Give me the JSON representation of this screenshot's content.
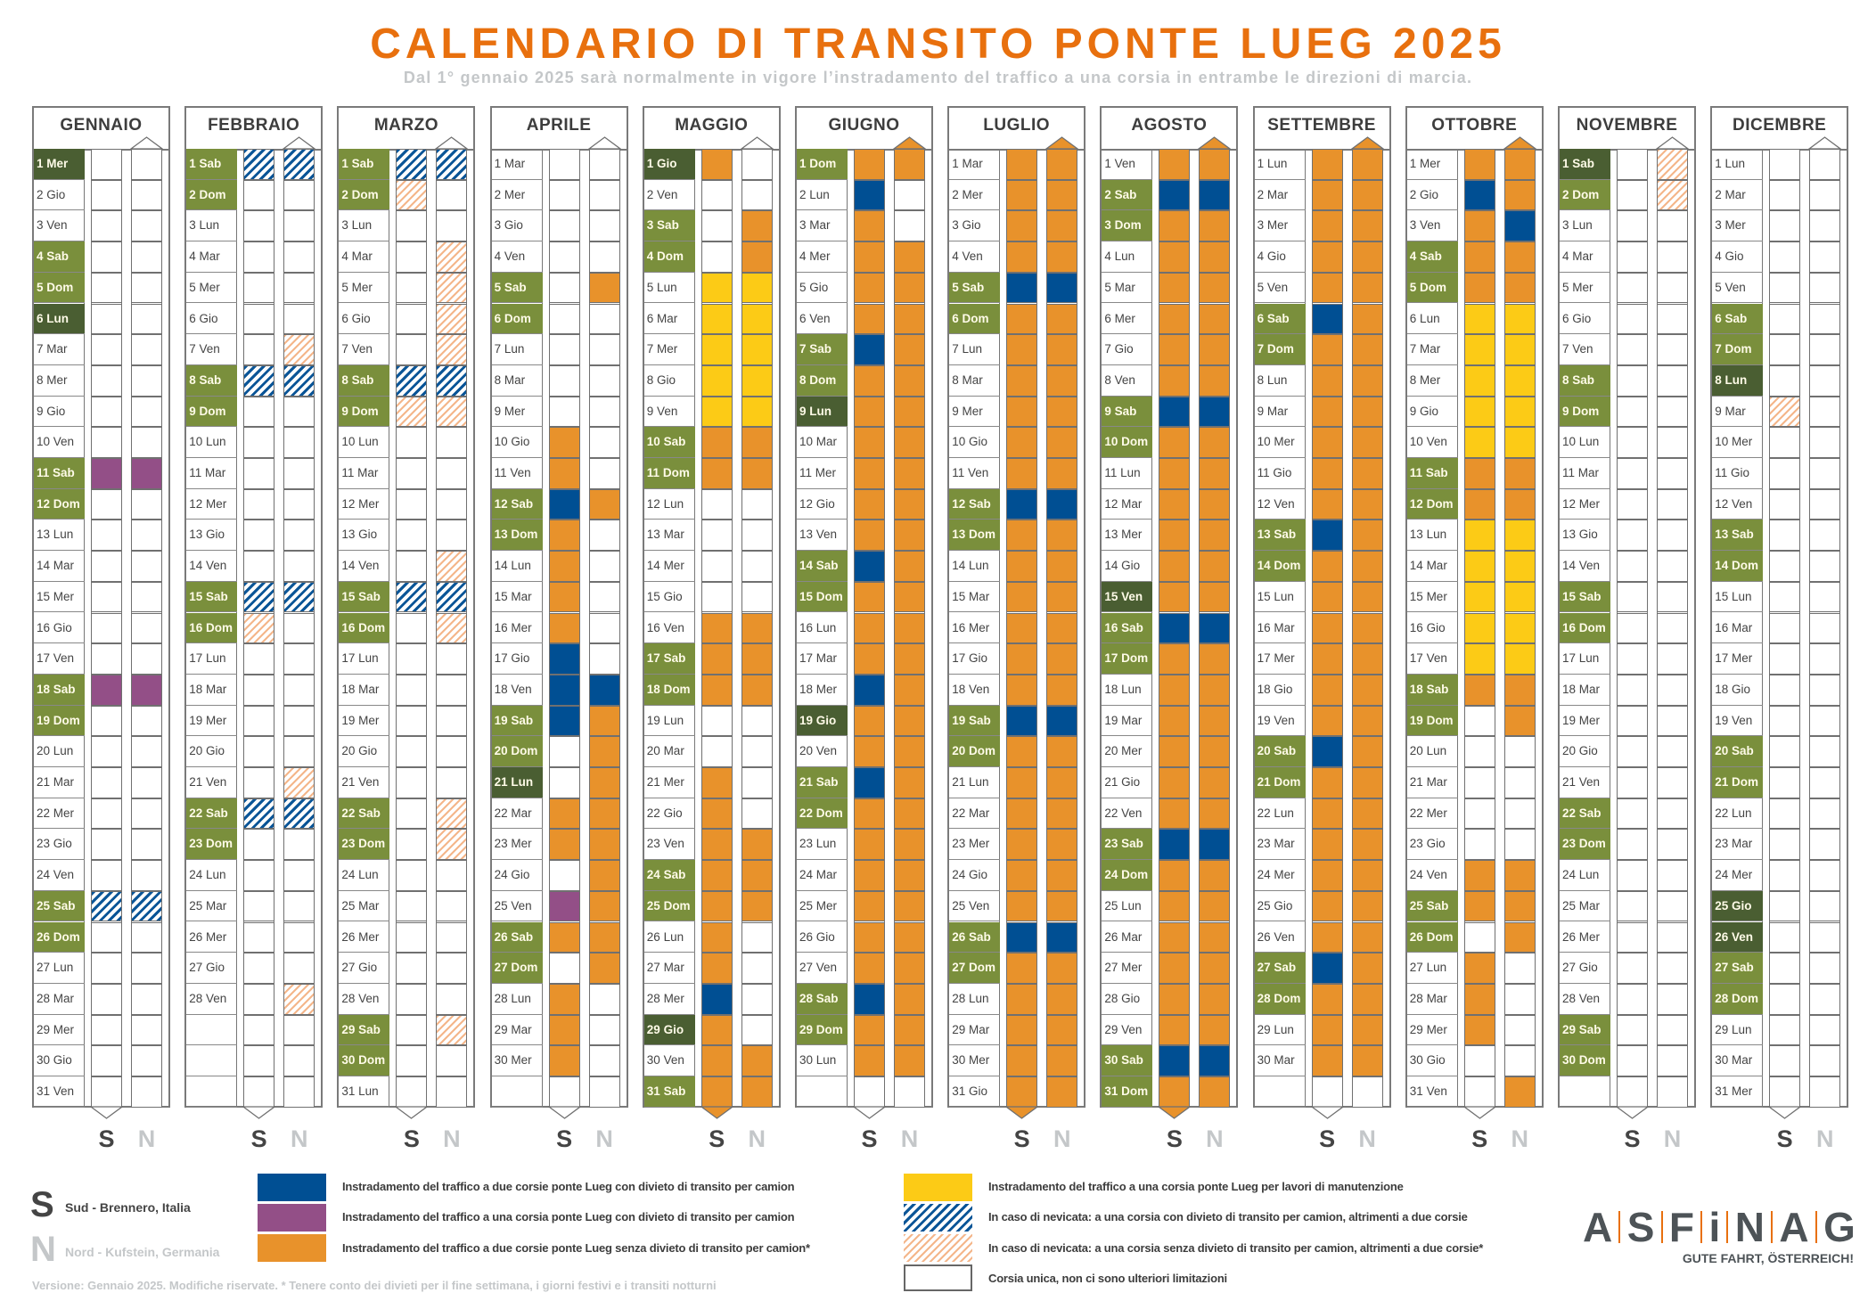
{
  "header": {
    "title": "CALENDARIO DI TRANSITO PONTE LUEG 2025",
    "subtitle": "Dal 1° gennaio 2025 sarà normalmente in vigore l’instradamento del traffico a una corsia in entrambe le direzioni di marcia."
  },
  "weekdays": [
    "Lun",
    "Mar",
    "Mer",
    "Gio",
    "Ven",
    "Sab",
    "Dom"
  ],
  "direction_letters": {
    "south": "S",
    "north": "N"
  },
  "state_codes": {
    "W": "white",
    "B": "blue",
    "P": "purple",
    "O": "orange",
    "Y": "yellow",
    "H": "blue-hatch",
    "R": "orange-hatch"
  },
  "colors": {
    "title": "#e8700e",
    "blue": "#004f93",
    "purple": "#934f87",
    "orange": "#e8922b",
    "yellow": "#fccb16",
    "weekend": "#7a8f3c",
    "holiday": "#4a5e32"
  },
  "months": [
    {
      "name": "GENNAIO",
      "days": 31,
      "start": 2,
      "holidays": [
        1,
        6
      ],
      "S": "WWWWWWWWWWPWWWWWWPWWWWWWHWWWWWW",
      "N": "WWWWWWWWWWPWWWWWWPWWWWWWHWWWWWW"
    },
    {
      "name": "FEBBRAIO",
      "days": 28,
      "start": 5,
      "holidays": [],
      "S": "HWWWWWWHWWWWWWHRWWWWWHWWWWWW",
      "N": "HWWWWWRHWWWWWWHWWWWWRHWWWWWR"
    },
    {
      "name": "MARZO",
      "days": 31,
      "start": 5,
      "holidays": [],
      "S": "HRWWWWWHRWWWWWHWWWWWWWWWWWWWWWW",
      "N": "HWWRRRRHRWWWWRHRWWWWWRRWWWWWRWW"
    },
    {
      "name": "APRILE",
      "days": 30,
      "start": 1,
      "holidays": [
        21
      ],
      "S": "WWWWWWWWWOOBOOOOBBBWWOOWPOWOOO",
      "N": "WWWWOWWWWWWOWWWWWBOOOOOOOOOWWW"
    },
    {
      "name": "MAGGIO",
      "days": 31,
      "start": 3,
      "holidays": [
        1,
        29
      ],
      "S": "OWWWYYYYYOOWWWWOOOWWOOOOOOOBOOO",
      "N": "WWOOYYYYYOOWWWWOOOWWWWOOOWWWWOO"
    },
    {
      "name": "GIUGNO",
      "days": 30,
      "start": 6,
      "holidays": [
        9,
        19
      ],
      "S": "OBOOOOBOOOOOOBOOOBOOBOOOOOOBOO",
      "N": "OWWOOOOOOOOOOOOOOOOOOOOOOOOOOO"
    },
    {
      "name": "LUGLIO",
      "days": 31,
      "start": 1,
      "holidays": [],
      "S": "OOOOBOOOOOOBOOOOOOBOOOOOOBOOOOO",
      "N": "OOOOBOOOOOOBOOOOOOBOOOOOOBOOOOO"
    },
    {
      "name": "AGOSTO",
      "days": 31,
      "start": 4,
      "holidays": [
        15
      ],
      "S": "OBOOOOOOBOOOOOOBOOOOOOBOOOOOOBO",
      "N": "OBOOOOOOBOOOOOOBOOOOOOBOOOOOOBO"
    },
    {
      "name": "SETTEMBRE",
      "days": 30,
      "start": 0,
      "holidays": [],
      "S": "OOOOOBOOOOOOBOOOOOOBOOOOOOBOOO",
      "N": "OOOOOOOOOOOOOOOOOOOOOOOOOOOOOO"
    },
    {
      "name": "OTTOBRE",
      "days": 31,
      "start": 2,
      "holidays": [],
      "S": "OBOOOYYYYYOOYYYYYOWWWWWOOWOOOWW",
      "N": "OOBOOYYYYYOOYYYYYOOWWWWOOOWWWWO"
    },
    {
      "name": "NOVEMBRE",
      "days": 30,
      "start": 5,
      "holidays": [
        1
      ],
      "S": "WWWWWWWWWWWWWWWWWWWWWWWWWWWWWW",
      "N": "RRWWWWWWWWWWWWWWWWWWWWWWWWWWWW"
    },
    {
      "name": "DICEMBRE",
      "days": 31,
      "start": 0,
      "holidays": [
        8,
        25,
        26
      ],
      "S": "WWWWWWWWRWWWWWWWWWWWWWWWWWWWWWW",
      "N": "WWWWWWWWWWWWWWWWWWWWWWWWWWWWWWW"
    }
  ],
  "legend": {
    "south_letter": "S",
    "south_label": "Sud - Brennero, Italia",
    "north_letter": "N",
    "north_label": "Nord - Kufstein, Germania",
    "items": [
      {
        "code": "B",
        "label": "Instradamento del traffico a due corsie ponte Lueg con divieto di transito per camion"
      },
      {
        "code": "P",
        "label": "Instradamento del traffico a una corsia ponte Lueg con divieto di transito per camion"
      },
      {
        "code": "O",
        "label": "Instradamento del traffico a due corsie ponte Lueg senza divieto di transito per camion*"
      },
      {
        "code": "Y",
        "label": "Instradamento del traffico a una corsia ponte Lueg per lavori di manutenzione"
      },
      {
        "code": "H",
        "label": "In caso di nevicata: a una corsia con divieto di transito per camion, altrimenti a due corsie"
      },
      {
        "code": "R",
        "label": "In caso di nevicata: a una corsia senza divieto di transito per camion, altrimenti a due corsie*"
      },
      {
        "code": "W",
        "label": "Corsia unica, non ci sono ulteriori limitazioni"
      }
    ],
    "footnote": "Versione: Gennaio 2025. Modifiche riservate. * Tenere conto dei divieti per il fine settimana, i giorni festivi e i transiti notturni"
  },
  "brand": {
    "logo_text": "ASFiNAG",
    "slogan": "GUTE FAHRT, ÖSTERREICH!"
  }
}
